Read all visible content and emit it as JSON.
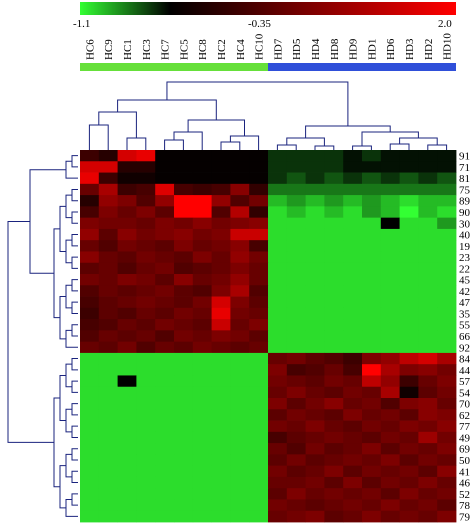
{
  "chart_data": {
    "type": "heatmap",
    "title": "",
    "color_scale": {
      "min_label": "-1.1",
      "mid_label": "-0.35",
      "max_label": "2.0",
      "min": -1.1,
      "mid": -0.35,
      "max": 2.0,
      "colors": {
        "low": "#33ff33",
        "mid": "#000000",
        "high": "#ff0000"
      }
    },
    "group_bar": [
      {
        "group": "HC",
        "color": "#66e03a",
        "count": 10
      },
      {
        "group": "HD",
        "color": "#2f4fd9",
        "count": 10
      }
    ],
    "columns": [
      "HC6",
      "HC9",
      "HC1",
      "HC3",
      "HC7",
      "HC5",
      "HC8",
      "HC2",
      "HC4",
      "HC10",
      "HD7",
      "HD5",
      "HD4",
      "HD8",
      "HD9",
      "HD1",
      "HD6",
      "HD3",
      "HD2",
      "HD10"
    ],
    "rows": [
      "91",
      "71",
      "81",
      "75",
      "89",
      "90",
      "30",
      "40",
      "19",
      "23",
      "22",
      "45",
      "42",
      "47",
      "35",
      "55",
      "66",
      "92",
      "84",
      "44",
      "57",
      "54",
      "70",
      "62",
      "77",
      "49",
      "69",
      "50",
      "41",
      "46",
      "52",
      "78",
      "79"
    ],
    "values": [
      [
        0.2,
        0.0,
        1.6,
        1.8,
        -0.3,
        -0.3,
        -0.3,
        -0.3,
        -0.3,
        -0.3,
        -0.5,
        -0.5,
        -0.5,
        -0.5,
        -0.4,
        -0.5,
        -0.4,
        -0.4,
        -0.4,
        -0.4
      ],
      [
        1.6,
        1.6,
        0.0,
        0.0,
        -0.3,
        -0.3,
        -0.3,
        -0.3,
        -0.3,
        -0.3,
        -0.5,
        -0.5,
        -0.5,
        -0.5,
        -0.4,
        -0.4,
        -0.4,
        -0.4,
        -0.4,
        -0.4
      ],
      [
        1.8,
        0.2,
        -0.2,
        -0.2,
        -0.3,
        -0.3,
        -0.3,
        -0.3,
        -0.3,
        -0.3,
        -0.5,
        -0.6,
        -0.5,
        -0.6,
        -0.5,
        -0.6,
        -0.5,
        -0.6,
        -0.5,
        -0.6
      ],
      [
        0.6,
        1.2,
        0.2,
        0.3,
        1.7,
        0.3,
        0.2,
        0.3,
        0.9,
        0.1,
        -0.7,
        -0.7,
        -0.7,
        -0.7,
        -0.7,
        -0.7,
        -0.7,
        -0.7,
        -0.7,
        -0.7
      ],
      [
        0.0,
        1.0,
        0.8,
        0.4,
        1.0,
        2.0,
        2.0,
        1.0,
        0.4,
        0.7,
        -0.9,
        -0.8,
        -0.9,
        -0.8,
        -0.9,
        -0.8,
        -0.9,
        -1.0,
        -0.9,
        -0.9
      ],
      [
        0.3,
        0.8,
        0.6,
        0.8,
        0.5,
        2.0,
        2.0,
        0.4,
        1.3,
        0.1,
        -1.0,
        -0.9,
        -1.0,
        -0.9,
        -1.0,
        -0.8,
        -0.9,
        -1.1,
        -0.9,
        -1.0
      ],
      [
        0.8,
        0.7,
        0.7,
        0.6,
        0.8,
        0.7,
        0.9,
        0.7,
        0.8,
        0.9,
        -1.0,
        -1.0,
        -1.0,
        -1.0,
        -1.0,
        -1.0,
        -0.35,
        -1.0,
        -1.0,
        -0.8
      ],
      [
        1.0,
        0.5,
        0.9,
        0.7,
        0.8,
        0.9,
        0.7,
        0.8,
        1.5,
        1.5,
        -1.0,
        -1.0,
        -1.0,
        -1.0,
        -1.0,
        -1.0,
        -1.0,
        -1.0,
        -1.0,
        -1.0
      ],
      [
        0.6,
        0.4,
        0.7,
        0.6,
        0.5,
        0.8,
        0.6,
        0.7,
        0.9,
        0.3,
        -1.0,
        -1.0,
        -1.0,
        -1.0,
        -1.0,
        -1.0,
        -1.0,
        -1.0,
        -1.0,
        -1.0
      ],
      [
        0.9,
        0.6,
        0.5,
        0.7,
        0.6,
        0.5,
        0.8,
        0.6,
        1.0,
        0.7,
        -1.0,
        -1.0,
        -1.0,
        -1.0,
        -1.0,
        -1.0,
        -1.0,
        -1.0,
        -1.0,
        -1.0
      ],
      [
        0.5,
        0.6,
        0.4,
        0.6,
        0.7,
        0.4,
        0.5,
        0.6,
        0.8,
        0.6,
        -1.0,
        -1.0,
        -1.0,
        -1.0,
        -1.0,
        -1.0,
        -1.0,
        -1.0,
        -1.0,
        -1.0
      ],
      [
        0.7,
        0.6,
        0.8,
        0.7,
        0.5,
        0.9,
        0.6,
        0.7,
        1.0,
        0.6,
        -1.0,
        -1.0,
        -1.0,
        -1.0,
        -1.0,
        -1.0,
        -1.0,
        -1.0,
        -1.0,
        -1.0
      ],
      [
        0.4,
        0.6,
        0.5,
        0.6,
        0.7,
        0.5,
        0.4,
        0.8,
        1.2,
        0.4,
        -1.0,
        -1.0,
        -1.0,
        -1.0,
        -1.0,
        -1.0,
        -1.0,
        -1.0,
        -1.0,
        -1.0
      ],
      [
        0.3,
        0.5,
        0.6,
        0.7,
        0.6,
        0.5,
        0.7,
        1.6,
        0.8,
        0.5,
        -1.0,
        -1.0,
        -1.0,
        -1.0,
        -1.0,
        -1.0,
        -1.0,
        -1.0,
        -1.0,
        -1.0
      ],
      [
        0.2,
        0.5,
        0.4,
        0.6,
        0.5,
        0.7,
        0.6,
        1.8,
        0.7,
        0.6,
        -1.0,
        -1.0,
        -1.0,
        -1.0,
        -1.0,
        -1.0,
        -1.0,
        -1.0,
        -1.0,
        -1.0
      ],
      [
        0.3,
        0.4,
        0.6,
        0.5,
        0.7,
        0.6,
        0.5,
        1.5,
        0.6,
        0.8,
        -1.0,
        -1.0,
        -1.0,
        -1.0,
        -1.0,
        -1.0,
        -1.0,
        -1.0,
        -1.0,
        -1.0
      ],
      [
        0.4,
        0.6,
        0.5,
        0.6,
        0.4,
        0.7,
        0.6,
        0.8,
        0.7,
        0.5,
        -1.0,
        -1.0,
        -1.0,
        -1.0,
        -1.0,
        -1.0,
        -1.0,
        -1.0,
        -1.0,
        -1.0
      ],
      [
        0.6,
        0.5,
        0.7,
        0.4,
        0.6,
        0.5,
        0.7,
        0.6,
        0.5,
        0.6,
        -1.0,
        -1.0,
        -1.0,
        -1.0,
        -1.0,
        -1.0,
        -1.0,
        -1.0,
        -1.0,
        -1.0
      ],
      [
        -1.0,
        -1.0,
        -1.0,
        -1.0,
        -1.0,
        -1.0,
        -1.0,
        -1.0,
        -1.0,
        -1.0,
        0.6,
        0.7,
        0.5,
        0.4,
        0.2,
        0.8,
        1.0,
        1.4,
        1.6,
        1.2
      ],
      [
        -1.0,
        -1.0,
        -1.0,
        -1.0,
        -1.0,
        -1.0,
        -1.0,
        -1.0,
        -1.0,
        -1.0,
        0.8,
        0.3,
        0.4,
        0.6,
        0.3,
        2.0,
        1.2,
        0.8,
        0.9,
        0.7
      ],
      [
        -1.0,
        -1.0,
        -0.35,
        -1.0,
        -1.0,
        -1.0,
        -1.0,
        -1.0,
        -1.0,
        -1.0,
        0.7,
        0.6,
        0.5,
        0.7,
        0.6,
        1.4,
        1.0,
        0.2,
        0.6,
        0.8
      ],
      [
        -1.0,
        -1.0,
        -1.0,
        -1.0,
        -1.0,
        -1.0,
        -1.0,
        -1.0,
        -1.0,
        -1.0,
        0.6,
        0.8,
        0.6,
        0.5,
        0.7,
        0.6,
        1.2,
        -0.2,
        0.5,
        0.7
      ],
      [
        -1.0,
        -1.0,
        -1.0,
        -1.0,
        -1.0,
        -1.0,
        -1.0,
        -1.0,
        -1.0,
        -1.0,
        0.8,
        0.5,
        0.7,
        0.9,
        0.6,
        0.7,
        0.4,
        0.8,
        0.9,
        0.6
      ],
      [
        -1.0,
        -1.0,
        -1.0,
        -1.0,
        -1.0,
        -1.0,
        -1.0,
        -1.0,
        -1.0,
        -1.0,
        0.5,
        0.7,
        0.6,
        0.5,
        0.8,
        0.6,
        0.7,
        0.5,
        0.9,
        0.8
      ],
      [
        -1.0,
        -1.0,
        -1.0,
        -1.0,
        -1.0,
        -1.0,
        -1.0,
        -1.0,
        -1.0,
        -1.0,
        0.7,
        0.6,
        0.8,
        0.6,
        0.5,
        0.7,
        0.6,
        0.8,
        0.7,
        0.9
      ],
      [
        -1.0,
        -1.0,
        -1.0,
        -1.0,
        -1.0,
        -1.0,
        -1.0,
        -1.0,
        -1.0,
        -1.0,
        0.3,
        0.5,
        0.6,
        0.7,
        0.6,
        0.5,
        0.7,
        0.6,
        1.1,
        0.7
      ],
      [
        -1.0,
        -1.0,
        -1.0,
        -1.0,
        -1.0,
        -1.0,
        -1.0,
        -1.0,
        -1.0,
        -1.0,
        0.6,
        0.4,
        0.7,
        0.5,
        0.6,
        0.8,
        0.5,
        0.7,
        0.6,
        0.8
      ],
      [
        -1.0,
        -1.0,
        -1.0,
        -1.0,
        -1.0,
        -1.0,
        -1.0,
        -1.0,
        -1.0,
        -1.0,
        0.5,
        0.7,
        0.5,
        0.6,
        0.7,
        0.6,
        0.8,
        0.5,
        0.7,
        0.6
      ],
      [
        -1.0,
        -1.0,
        -1.0,
        -1.0,
        -1.0,
        -1.0,
        -1.0,
        -1.0,
        -1.0,
        -1.0,
        0.7,
        0.5,
        0.6,
        0.8,
        0.5,
        0.7,
        0.6,
        0.7,
        0.5,
        0.9
      ],
      [
        -1.0,
        -1.0,
        -1.0,
        -1.0,
        -1.0,
        -1.0,
        -1.0,
        -1.0,
        -1.0,
        -1.0,
        0.6,
        0.6,
        0.7,
        0.5,
        0.8,
        0.5,
        0.7,
        0.6,
        0.8,
        0.6
      ],
      [
        -1.0,
        -1.0,
        -1.0,
        -1.0,
        -1.0,
        -1.0,
        -1.0,
        -1.0,
        -1.0,
        -1.0,
        0.5,
        0.8,
        0.6,
        0.7,
        0.6,
        0.7,
        0.5,
        0.8,
        0.6,
        0.7
      ],
      [
        -1.0,
        -1.0,
        -1.0,
        -1.0,
        -1.0,
        -1.0,
        -1.0,
        -1.0,
        -1.0,
        -1.0,
        0.7,
        0.6,
        0.5,
        0.6,
        0.7,
        0.6,
        0.8,
        0.6,
        0.7,
        0.5
      ],
      [
        -1.0,
        -1.0,
        -1.0,
        -1.0,
        -1.0,
        -1.0,
        -1.0,
        -1.0,
        -1.0,
        -1.0,
        0.6,
        0.7,
        0.8,
        0.5,
        0.6,
        0.8,
        0.6,
        0.7,
        0.6,
        0.8
      ]
    ],
    "dendrogram_color": "#1a237e",
    "grid": false,
    "legend": "top"
  }
}
